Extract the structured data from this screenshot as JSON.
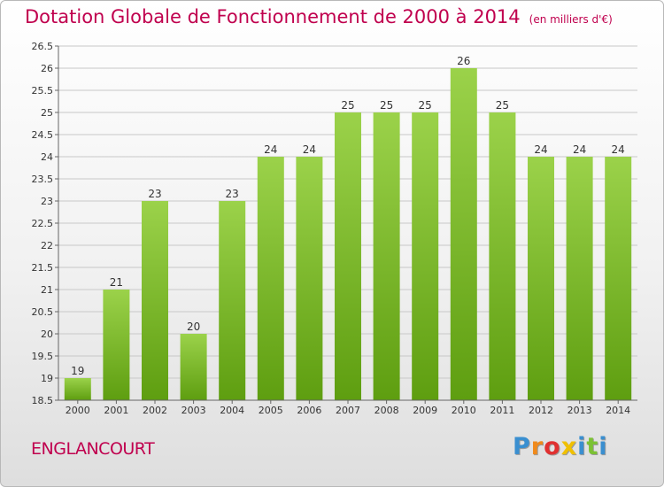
{
  "title": "Dotation Globale de Fonctionnement de 2000 à 2014",
  "unit_note": "(en milliers d'€)",
  "location": "ENGLANCOURT",
  "logo": {
    "text": "Proxiti",
    "letter_colors": [
      "#3a8fd0",
      "#f08a1c",
      "#e03030",
      "#f0c000",
      "#3a8fd0",
      "#7cc234",
      "#3a8fd0"
    ]
  },
  "colors": {
    "title": "#c0004e",
    "bar_top": "#9bd24a",
    "bar_bottom": "#5e9e10",
    "grid": "#c8c8c8"
  },
  "chart_data": {
    "type": "bar",
    "categories": [
      "2000",
      "2001",
      "2002",
      "2003",
      "2004",
      "2005",
      "2006",
      "2007",
      "2008",
      "2009",
      "2010",
      "2011",
      "2012",
      "2013",
      "2014"
    ],
    "values": [
      19,
      21,
      23,
      20,
      23,
      24,
      24,
      25,
      25,
      25,
      26,
      25,
      24,
      24,
      24
    ],
    "data_labels": [
      "19",
      "21",
      "23",
      "20",
      "23",
      "24",
      "24",
      "25",
      "25",
      "25",
      "26",
      "25",
      "24",
      "24",
      "24"
    ],
    "y_ticks": [
      "18.5",
      "19",
      "19.5",
      "20",
      "20.5",
      "21",
      "21.5",
      "22",
      "22.5",
      "23",
      "23.5",
      "24",
      "24.5",
      "25",
      "25.5",
      "26",
      "26.5"
    ],
    "ylim": [
      18.5,
      26.5
    ],
    "grid": true,
    "legend": "none"
  }
}
